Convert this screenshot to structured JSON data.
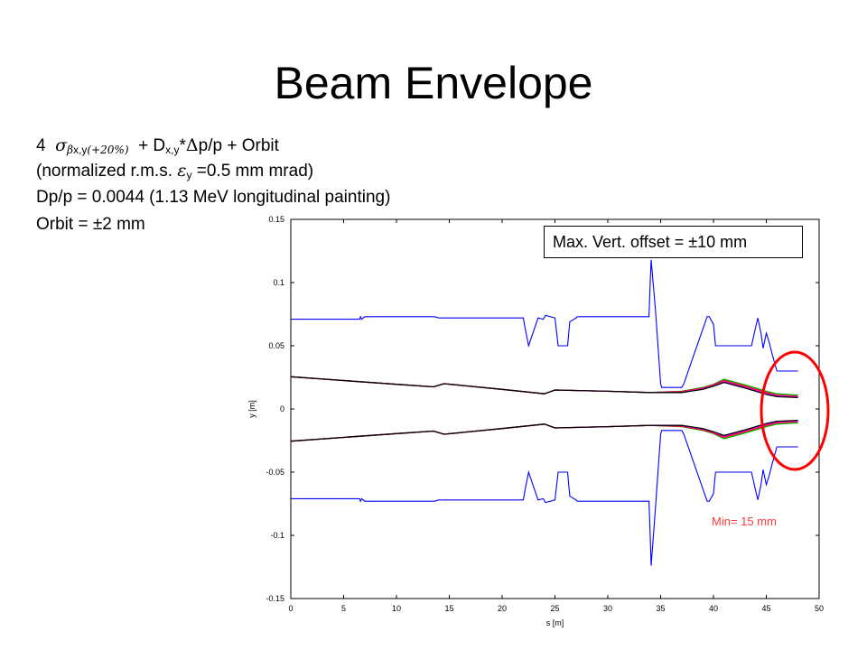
{
  "slide": {
    "title": "Beam Envelope",
    "line1": {
      "n": "4",
      "sigma": "σ",
      "beta": "β",
      "sub_xy": "x,y",
      "sub_pct": "(+20%)",
      "plus_d": "+ D",
      "sub_d": "x,y",
      "star": "*",
      "delta": "Δ",
      "rest": "p/p + Orbit"
    },
    "line2": {
      "pre": "(normalized r.m.s.",
      "eps": "ε",
      "sub": "y",
      "post": "=0.5 mm mrad)"
    },
    "line3": "Dp/p = 0.0044 (1.13 MeV longitudinal painting)",
    "line4": "Orbit = ±2 mm",
    "callout": "Max. Vert. offset = ±10 mm",
    "min_note": "Min= 15 mm"
  },
  "colors": {
    "aperture": "#0000ff",
    "envelope_black": "#000000",
    "envelope_red": "#ff0000",
    "envelope_magenta": "#ff00ff",
    "envelope_green": "#00aa00",
    "highlight_circle": "#ff0000",
    "min_note": "#ff3b3b"
  },
  "chart_data": {
    "type": "line",
    "xlabel": "s [m]",
    "ylabel": "y [m]",
    "xlim": [
      0,
      50
    ],
    "ylim": [
      -0.15,
      0.15
    ],
    "xticks": [
      "0",
      "5",
      "10",
      "15",
      "20",
      "25",
      "30",
      "35",
      "40",
      "45",
      "50"
    ],
    "yticks": [
      "0.15",
      "0.1",
      "0.05",
      "0",
      "-0.05",
      "-0.1",
      "-0.15"
    ],
    "grid": false,
    "series": [
      {
        "color": "aperture",
        "x": [
          0,
          6.5,
          6.6,
          6.7,
          7,
          13.6,
          14,
          22,
          22.2,
          22.5,
          23.4,
          23.9,
          24.1,
          25,
          25.3,
          26.2,
          26.4,
          27,
          27.1,
          33.9,
          34,
          34.1,
          34.5,
          35,
          35.1,
          36,
          37,
          37.2,
          39.4,
          39.6,
          40,
          40.2,
          43.6,
          44,
          44.2,
          44.5,
          44.7,
          45,
          45.3,
          45.5,
          46,
          48
        ],
        "y": [
          0.071,
          0.071,
          0.073,
          0.071,
          0.073,
          0.073,
          0.072,
          0.072,
          0.063,
          0.05,
          0.072,
          0.071,
          0.074,
          0.072,
          0.05,
          0.05,
          0.069,
          0.072,
          0.073,
          0.073,
          0.097,
          0.118,
          0.08,
          0.02,
          0.017,
          0.017,
          0.017,
          0.02,
          0.073,
          0.073,
          0.067,
          0.05,
          0.05,
          0.065,
          0.072,
          0.06,
          0.048,
          0.06,
          0.052,
          0.045,
          0.03,
          0.03
        ]
      },
      {
        "color": "aperture",
        "x": [
          0,
          6.5,
          6.6,
          6.7,
          7,
          13.6,
          14,
          22,
          22.2,
          22.5,
          23.4,
          23.9,
          24.1,
          25,
          25.3,
          26.2,
          26.4,
          27,
          27.1,
          33.9,
          34,
          34.1,
          34.5,
          35,
          35.1,
          36,
          37,
          37.2,
          39.4,
          39.6,
          40,
          40.2,
          43.6,
          44,
          44.2,
          44.5,
          44.7,
          45,
          45.3,
          45.5,
          46,
          48
        ],
        "y": [
          -0.071,
          -0.071,
          -0.073,
          -0.071,
          -0.073,
          -0.073,
          -0.072,
          -0.072,
          -0.063,
          -0.05,
          -0.072,
          -0.071,
          -0.074,
          -0.072,
          -0.05,
          -0.05,
          -0.069,
          -0.072,
          -0.073,
          -0.073,
          -0.097,
          -0.124,
          -0.08,
          -0.02,
          -0.017,
          -0.017,
          -0.017,
          -0.02,
          -0.073,
          -0.073,
          -0.067,
          -0.05,
          -0.05,
          -0.065,
          -0.072,
          -0.06,
          -0.048,
          -0.06,
          -0.052,
          -0.045,
          -0.03,
          -0.03
        ]
      },
      {
        "color": "envelope_green",
        "x": [
          0,
          5,
          10,
          13.5,
          14.5,
          20,
          24,
          25,
          30,
          34,
          37,
          39,
          40,
          41,
          43,
          45,
          46,
          48
        ],
        "y": [
          0.0255,
          0.0225,
          0.0195,
          0.0175,
          0.02,
          0.0155,
          0.012,
          0.015,
          0.014,
          0.013,
          0.014,
          0.017,
          0.0195,
          0.0235,
          0.019,
          0.014,
          0.012,
          0.011
        ]
      },
      {
        "color": "envelope_red",
        "x": [
          0,
          5,
          10,
          13.5,
          14.5,
          20,
          24,
          25,
          30,
          34,
          37,
          39,
          40,
          41,
          43,
          45,
          46,
          48
        ],
        "y": [
          0.0255,
          0.0225,
          0.0195,
          0.0175,
          0.02,
          0.0155,
          0.012,
          0.015,
          0.014,
          0.013,
          0.0137,
          0.0165,
          0.019,
          0.0225,
          0.018,
          0.013,
          0.011,
          0.01
        ]
      },
      {
        "color": "envelope_magenta",
        "x": [
          0,
          5,
          10,
          13.5,
          14.5,
          20,
          24,
          25,
          30,
          34,
          37,
          39,
          40,
          41,
          43,
          45,
          46,
          48
        ],
        "y": [
          0.0255,
          0.0225,
          0.0195,
          0.0175,
          0.02,
          0.0155,
          0.012,
          0.015,
          0.014,
          0.013,
          0.0133,
          0.016,
          0.0185,
          0.0218,
          0.0172,
          0.0122,
          0.0104,
          0.0095
        ]
      },
      {
        "color": "envelope_black",
        "x": [
          0,
          5,
          10,
          13.5,
          14.5,
          20,
          24,
          25,
          30,
          34,
          37,
          39,
          40,
          41,
          43,
          45,
          46,
          48
        ],
        "y": [
          0.0255,
          0.0225,
          0.0195,
          0.0175,
          0.02,
          0.0155,
          0.012,
          0.015,
          0.014,
          0.013,
          0.013,
          0.0155,
          0.018,
          0.021,
          0.0165,
          0.0115,
          0.0098,
          0.009
        ]
      },
      {
        "color": "envelope_green",
        "x": [
          0,
          5,
          10,
          13.5,
          14.5,
          20,
          24,
          25,
          30,
          34,
          37,
          39,
          40,
          41,
          43,
          45,
          46,
          48
        ],
        "y": [
          -0.0255,
          -0.0225,
          -0.0195,
          -0.0175,
          -0.02,
          -0.0155,
          -0.012,
          -0.015,
          -0.014,
          -0.013,
          -0.014,
          -0.017,
          -0.0195,
          -0.0235,
          -0.019,
          -0.014,
          -0.012,
          -0.011
        ]
      },
      {
        "color": "envelope_red",
        "x": [
          0,
          5,
          10,
          13.5,
          14.5,
          20,
          24,
          25,
          30,
          34,
          37,
          39,
          40,
          41,
          43,
          45,
          46,
          48
        ],
        "y": [
          -0.0255,
          -0.0225,
          -0.0195,
          -0.0175,
          -0.02,
          -0.0155,
          -0.012,
          -0.015,
          -0.014,
          -0.013,
          -0.0137,
          -0.0165,
          -0.019,
          -0.0225,
          -0.018,
          -0.013,
          -0.011,
          -0.01
        ]
      },
      {
        "color": "envelope_magenta",
        "x": [
          0,
          5,
          10,
          13.5,
          14.5,
          20,
          24,
          25,
          30,
          34,
          37,
          39,
          40,
          41,
          43,
          45,
          46,
          48
        ],
        "y": [
          -0.0255,
          -0.0225,
          -0.0195,
          -0.0175,
          -0.02,
          -0.0155,
          -0.012,
          -0.015,
          -0.014,
          -0.013,
          -0.0133,
          -0.016,
          -0.0185,
          -0.0218,
          -0.0172,
          -0.0122,
          -0.0104,
          -0.0095
        ]
      },
      {
        "color": "envelope_black",
        "x": [
          0,
          5,
          10,
          13.5,
          14.5,
          20,
          24,
          25,
          30,
          34,
          37,
          39,
          40,
          41,
          43,
          45,
          46,
          48
        ],
        "y": [
          -0.0255,
          -0.0225,
          -0.0195,
          -0.0175,
          -0.02,
          -0.0155,
          -0.012,
          -0.015,
          -0.014,
          -0.013,
          -0.013,
          -0.0155,
          -0.018,
          -0.021,
          -0.0165,
          -0.0115,
          -0.0098,
          -0.009
        ]
      }
    ]
  }
}
